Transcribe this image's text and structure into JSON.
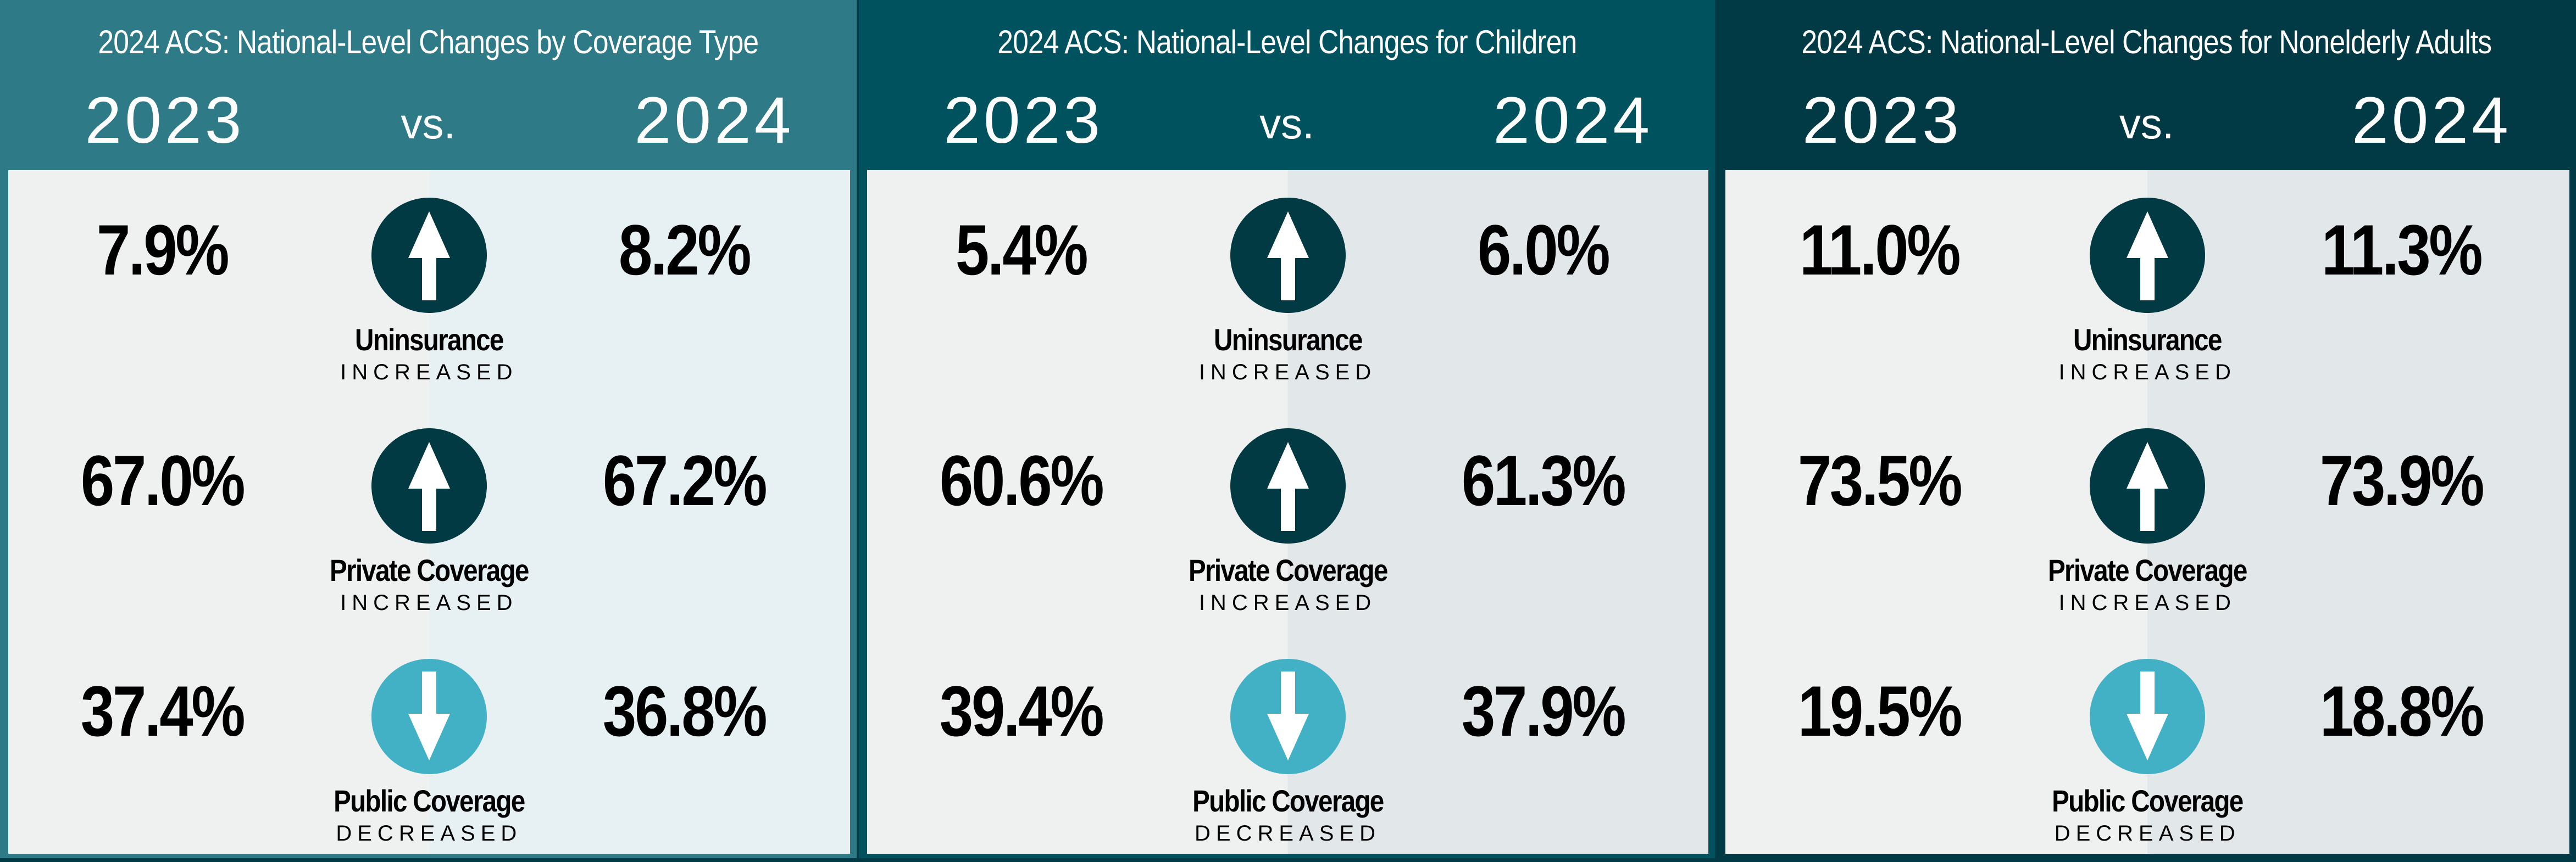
{
  "colors": {
    "panel_bg": [
      "#2e7a87",
      "#00525f",
      "#013a44"
    ],
    "content_right": [
      "#e7f0f2",
      "#e2e8ea",
      "#e2e8ea"
    ],
    "increase_icon": "#023a44",
    "decrease_icon": "#42b1c6"
  },
  "labels": {
    "year_a": "2023",
    "vs": "vs.",
    "year_b": "2024"
  },
  "panels": [
    {
      "title": "2024 ACS: National-Level Changes by Coverage Type",
      "rows": [
        {
          "label": "Uninsurance",
          "change": "INCREASED",
          "direction": "up",
          "icon": "arrow-up-icon",
          "v2023": "7.9%",
          "v2024": "8.2%"
        },
        {
          "label": "Private Coverage",
          "change": "INCREASED",
          "direction": "up",
          "icon": "arrow-up-icon",
          "v2023": "67.0%",
          "v2024": "67.2%"
        },
        {
          "label": "Public Coverage",
          "change": "DECREASED",
          "direction": "down",
          "icon": "arrow-down-icon",
          "v2023": "37.4%",
          "v2024": "36.8%"
        }
      ]
    },
    {
      "title": "2024 ACS: National-Level Changes for Children",
      "rows": [
        {
          "label": "Uninsurance",
          "change": "INCREASED",
          "direction": "up",
          "icon": "arrow-up-icon",
          "v2023": "5.4%",
          "v2024": "6.0%"
        },
        {
          "label": "Private Coverage",
          "change": "INCREASED",
          "direction": "up",
          "icon": "arrow-up-icon",
          "v2023": "60.6%",
          "v2024": "61.3%"
        },
        {
          "label": "Public Coverage",
          "change": "DECREASED",
          "direction": "down",
          "icon": "arrow-down-icon",
          "v2023": "39.4%",
          "v2024": "37.9%"
        }
      ]
    },
    {
      "title": "2024 ACS: National-Level Changes for Nonelderly Adults",
      "rows": [
        {
          "label": "Uninsurance",
          "change": "INCREASED",
          "direction": "up",
          "icon": "arrow-up-icon",
          "v2023": "11.0%",
          "v2024": "11.3%"
        },
        {
          "label": "Private Coverage",
          "change": "INCREASED",
          "direction": "up",
          "icon": "arrow-up-icon",
          "v2023": "73.5%",
          "v2024": "73.9%"
        },
        {
          "label": "Public Coverage",
          "change": "DECREASED",
          "direction": "down",
          "icon": "arrow-down-icon",
          "v2023": "19.5%",
          "v2024": "18.8%"
        }
      ]
    }
  ]
}
